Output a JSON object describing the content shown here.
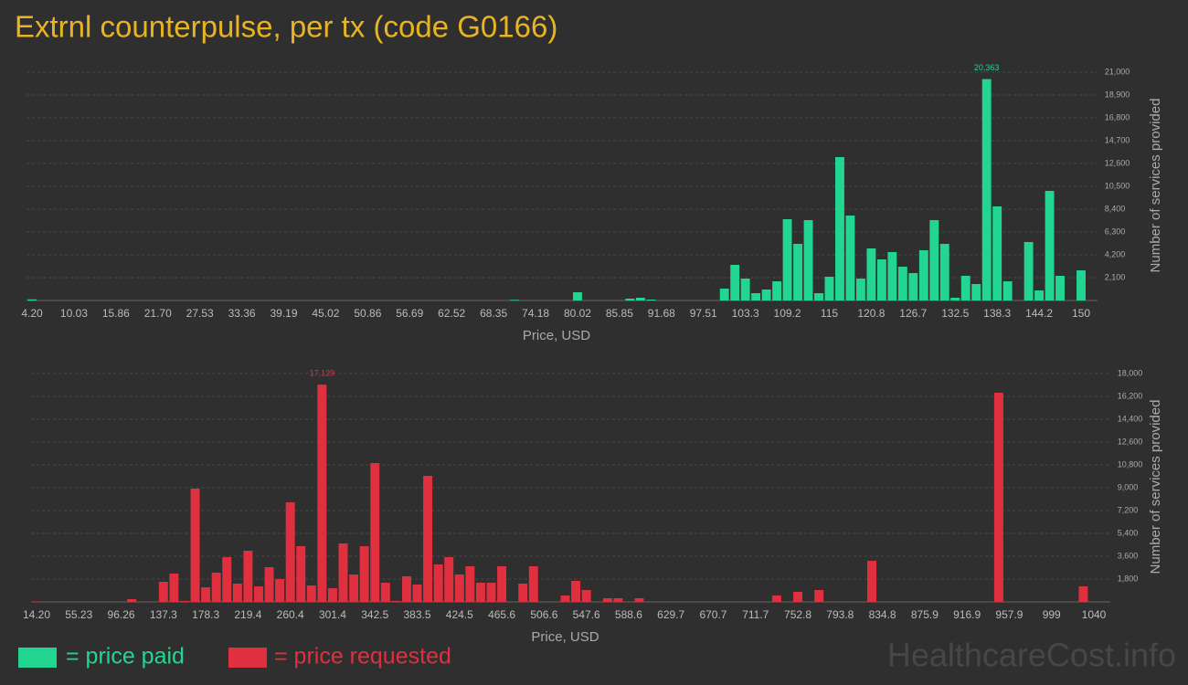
{
  "title": "Extrnl counterpulse, per tx (code G0166)",
  "watermark": "HealthcareCost.info",
  "chart_data": [
    {
      "type": "bar",
      "x_label": "Price, USD",
      "y_label": "Number of services provided",
      "categories": [
        "4.20",
        null,
        null,
        null,
        "10.03",
        null,
        null,
        null,
        "15.86",
        null,
        null,
        null,
        "21.70",
        null,
        null,
        null,
        "27.53",
        null,
        null,
        null,
        "33.36",
        null,
        null,
        null,
        "39.19",
        null,
        null,
        null,
        "45.02",
        null,
        null,
        null,
        "50.86",
        null,
        null,
        null,
        "56.69",
        null,
        null,
        null,
        "62.52",
        null,
        null,
        null,
        "68.35",
        null,
        null,
        null,
        "74.18",
        null,
        null,
        null,
        "80.02",
        null,
        null,
        null,
        "85.85",
        null,
        null,
        null,
        "91.68",
        null,
        null,
        null,
        "97.51",
        null,
        null,
        null,
        "103.3",
        null,
        null,
        null,
        "109.2",
        null,
        null,
        null,
        "115",
        null,
        null,
        null,
        "120.8",
        null,
        null,
        null,
        "126.7",
        null,
        null,
        null,
        "132.5",
        null,
        null,
        null,
        "138.3",
        null,
        null,
        null,
        "144.2",
        null,
        null,
        null,
        "150"
      ],
      "series": [
        {
          "name": "= price paid",
          "color": "#22d691",
          "values": [
            100,
            0,
            0,
            0,
            0,
            0,
            0,
            0,
            0,
            0,
            0,
            0,
            0,
            0,
            0,
            0,
            0,
            0,
            0,
            0,
            0,
            0,
            0,
            0,
            0,
            0,
            0,
            0,
            0,
            0,
            0,
            0,
            0,
            0,
            0,
            0,
            0,
            0,
            0,
            0,
            0,
            0,
            0,
            0,
            0,
            0,
            60,
            0,
            0,
            0,
            0,
            0,
            756,
            0,
            0,
            0,
            0,
            168,
            252,
            84,
            0,
            0,
            0,
            0,
            0,
            0,
            1092,
            3276,
            2016,
            672,
            1008,
            1764,
            7476,
            5208,
            7392,
            672,
            2184,
            13188,
            7812,
            2016,
            4788,
            3780,
            4452,
            3108,
            2520,
            4620,
            7392,
            5208,
            252,
            2268,
            1512,
            20363,
            8652,
            1764,
            0,
            5376,
            924,
            10080,
            2268,
            0,
            2772
          ],
          "value_labels": [
            null,
            null,
            null,
            null,
            null,
            null,
            null,
            null,
            null,
            null,
            null,
            null,
            null,
            null,
            null,
            null,
            null,
            null,
            null,
            null,
            null,
            null,
            null,
            null,
            null,
            null,
            null,
            null,
            null,
            null,
            null,
            null,
            null,
            null,
            null,
            null,
            null,
            null,
            null,
            null,
            null,
            null,
            null,
            null,
            null,
            null,
            null,
            null,
            null,
            null,
            null,
            null,
            null,
            null,
            null,
            null,
            null,
            null,
            null,
            null,
            null,
            null,
            null,
            null,
            null,
            null,
            null,
            null,
            null,
            null,
            null,
            null,
            null,
            null,
            null,
            null,
            null,
            null,
            null,
            null,
            null,
            null,
            null,
            null,
            null,
            null,
            null,
            null,
            null,
            null,
            null,
            "20,363",
            null,
            null,
            null,
            null,
            null,
            null,
            null,
            null,
            null
          ]
        }
      ],
      "ylim": [
        0,
        21000
      ],
      "yticks": [
        {
          "value": 2100,
          "label": "2,100"
        },
        {
          "value": 4200,
          "label": "4,200"
        },
        {
          "value": 6300,
          "label": "6,300"
        },
        {
          "value": 8400,
          "label": "8,400"
        },
        {
          "value": 10500,
          "label": "10,500"
        },
        {
          "value": 12600,
          "label": "12,600"
        },
        {
          "value": 14700,
          "label": "14,700"
        },
        {
          "value": 16800,
          "label": "16,800"
        },
        {
          "value": 18900,
          "label": "18,900"
        },
        {
          "value": 21000,
          "label": "21,000"
        }
      ],
      "grid": true
    },
    {
      "type": "bar",
      "x_label": "Price, USD",
      "y_label": "Number of services provided",
      "categories": [
        "14.20",
        null,
        null,
        null,
        "55.23",
        null,
        null,
        null,
        "96.26",
        null,
        null,
        null,
        "137.3",
        null,
        null,
        null,
        "178.3",
        null,
        null,
        null,
        "219.4",
        null,
        null,
        null,
        "260.4",
        null,
        null,
        null,
        "301.4",
        null,
        null,
        null,
        "342.5",
        null,
        null,
        null,
        "383.5",
        null,
        null,
        null,
        "424.5",
        null,
        null,
        null,
        "465.6",
        null,
        null,
        null,
        "506.6",
        null,
        null,
        null,
        "547.6",
        null,
        null,
        null,
        "588.6",
        null,
        null,
        null,
        "629.7",
        null,
        null,
        null,
        "670.7",
        null,
        null,
        null,
        "711.7",
        null,
        null,
        null,
        "752.8",
        null,
        null,
        null,
        "793.8",
        null,
        null,
        null,
        "834.8",
        null,
        null,
        null,
        "875.9",
        null,
        null,
        null,
        "916.9",
        null,
        null,
        null,
        "957.9",
        null,
        null,
        null,
        "999",
        null,
        null,
        null,
        "1040"
      ],
      "series": [
        {
          "name": "= price requested",
          "color": "#e0303f",
          "values": [
            36,
            0,
            0,
            0,
            0,
            0,
            0,
            0,
            0,
            216,
            0,
            0,
            1584,
            2232,
            72,
            8928,
            1152,
            2304,
            3528,
            1440,
            4032,
            1224,
            2736,
            1800,
            7848,
            4392,
            1296,
            17129,
            1080,
            4608,
            2160,
            4392,
            10944,
            1512,
            72,
            2016,
            1368,
            9936,
            2952,
            3528,
            2160,
            2808,
            1512,
            1512,
            2808,
            0,
            1440,
            2808,
            0,
            0,
            504,
            1656,
            936,
            0,
            288,
            288,
            0,
            288,
            0,
            0,
            0,
            0,
            0,
            0,
            0,
            0,
            0,
            0,
            0,
            0,
            504,
            0,
            792,
            0,
            936,
            0,
            0,
            0,
            0,
            3240,
            0,
            0,
            0,
            0,
            0,
            0,
            0,
            0,
            0,
            0,
            0,
            16488,
            0,
            0,
            0,
            0,
            0,
            0,
            0,
            1224,
            0
          ],
          "value_labels": [
            null,
            null,
            null,
            null,
            null,
            null,
            null,
            null,
            null,
            null,
            null,
            null,
            null,
            null,
            null,
            null,
            null,
            null,
            null,
            null,
            null,
            null,
            null,
            null,
            null,
            null,
            null,
            "17,129",
            null,
            null,
            null,
            null,
            null,
            null,
            null,
            null,
            null,
            null,
            null,
            null,
            null,
            null,
            null,
            null,
            null,
            null,
            null,
            null,
            null,
            null,
            null,
            null,
            null,
            null,
            null,
            null,
            null,
            null,
            null,
            null,
            null,
            null,
            null,
            null,
            null,
            null,
            null,
            null,
            null,
            null,
            null,
            null,
            null,
            null,
            null,
            null,
            null,
            null,
            null,
            null,
            null,
            null,
            null,
            null,
            null,
            null,
            null,
            null,
            null,
            null,
            null,
            null,
            null,
            null,
            null,
            null,
            null,
            null,
            null,
            null,
            null
          ]
        }
      ],
      "ylim": [
        0,
        18000
      ],
      "yticks": [
        {
          "value": 1800,
          "label": "1,800"
        },
        {
          "value": 3600,
          "label": "3,600"
        },
        {
          "value": 5400,
          "label": "5,400"
        },
        {
          "value": 7200,
          "label": "7,200"
        },
        {
          "value": 9000,
          "label": "9,000"
        },
        {
          "value": 10800,
          "label": "10,800"
        },
        {
          "value": 12600,
          "label": "12,600"
        },
        {
          "value": 14400,
          "label": "14,400"
        },
        {
          "value": 16200,
          "label": "16,200"
        },
        {
          "value": 18000,
          "label": "18,000"
        }
      ],
      "grid": true
    }
  ]
}
